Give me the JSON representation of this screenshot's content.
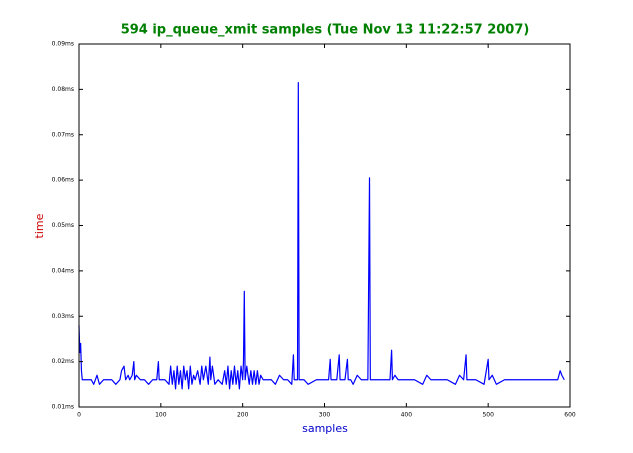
{
  "chart_data": {
    "type": "line",
    "title": "594 ip_queue_xmit samples (Tue Nov 13 11:22:57 2007)",
    "xlabel": "samples",
    "ylabel": "time",
    "xlim": [
      0,
      600
    ],
    "xticks": [
      0,
      100,
      200,
      300,
      400,
      500,
      600
    ],
    "ylim": [
      0.01,
      0.09
    ],
    "yticks": [
      {
        "value": 0.01,
        "label": "0.01ms"
      },
      {
        "value": 0.02,
        "label": "0.02ms"
      },
      {
        "value": 0.03,
        "label": "0.03ms"
      },
      {
        "value": 0.04,
        "label": "0.04ms"
      },
      {
        "value": 0.05,
        "label": "0.05ms"
      },
      {
        "value": 0.06,
        "label": "0.06ms"
      },
      {
        "value": 0.07,
        "label": "0.07ms"
      },
      {
        "value": 0.08,
        "label": "0.08ms"
      },
      {
        "value": 0.09,
        "label": "0.09ms"
      }
    ],
    "x": [
      0,
      1,
      2,
      3,
      4,
      6,
      10,
      15,
      18,
      20,
      22,
      25,
      30,
      35,
      40,
      45,
      50,
      52,
      55,
      57,
      60,
      62,
      65,
      67,
      68,
      70,
      75,
      80,
      85,
      90,
      95,
      97,
      98,
      100,
      105,
      110,
      112,
      114,
      116,
      118,
      120,
      122,
      124,
      126,
      128,
      130,
      132,
      134,
      136,
      138,
      140,
      142,
      145,
      148,
      150,
      152,
      155,
      158,
      160,
      161,
      163,
      166,
      170,
      175,
      178,
      180,
      182,
      184,
      186,
      188,
      190,
      192,
      194,
      196,
      198,
      200,
      201,
      202,
      203,
      205,
      208,
      210,
      212,
      214,
      216,
      218,
      220,
      222,
      225,
      230,
      235,
      240,
      245,
      250,
      255,
      260,
      262,
      263,
      265,
      267,
      268,
      269,
      271,
      275,
      280,
      290,
      300,
      305,
      307,
      308,
      310,
      315,
      318,
      319,
      322,
      325,
      328,
      329,
      332,
      335,
      340,
      345,
      350,
      353,
      355,
      356,
      358,
      365,
      370,
      380,
      382,
      383,
      386,
      390,
      400,
      410,
      420,
      425,
      430,
      440,
      450,
      460,
      465,
      470,
      473,
      474,
      478,
      485,
      495,
      500,
      501,
      505,
      510,
      520,
      530,
      540,
      550,
      560,
      570,
      580,
      585,
      588,
      590,
      593
    ],
    "series": [
      {
        "color": "#0000ff",
        "values": [
          0.028,
          0.022,
          0.024,
          0.018,
          0.016,
          0.016,
          0.016,
          0.016,
          0.015,
          0.016,
          0.017,
          0.015,
          0.016,
          0.016,
          0.016,
          0.015,
          0.016,
          0.018,
          0.019,
          0.016,
          0.017,
          0.016,
          0.017,
          0.02,
          0.016,
          0.017,
          0.016,
          0.016,
          0.015,
          0.016,
          0.016,
          0.02,
          0.016,
          0.016,
          0.016,
          0.015,
          0.019,
          0.015,
          0.018,
          0.014,
          0.019,
          0.015,
          0.018,
          0.014,
          0.019,
          0.016,
          0.018,
          0.014,
          0.019,
          0.015,
          0.017,
          0.016,
          0.018,
          0.015,
          0.019,
          0.016,
          0.019,
          0.015,
          0.021,
          0.016,
          0.019,
          0.015,
          0.016,
          0.015,
          0.018,
          0.015,
          0.019,
          0.014,
          0.018,
          0.015,
          0.019,
          0.015,
          0.018,
          0.014,
          0.019,
          0.016,
          0.02,
          0.0355,
          0.016,
          0.019,
          0.015,
          0.018,
          0.015,
          0.018,
          0.015,
          0.018,
          0.015,
          0.017,
          0.016,
          0.016,
          0.016,
          0.015,
          0.017,
          0.016,
          0.016,
          0.015,
          0.0215,
          0.016,
          0.016,
          0.016,
          0.0815,
          0.016,
          0.016,
          0.016,
          0.015,
          0.016,
          0.016,
          0.016,
          0.0205,
          0.016,
          0.016,
          0.016,
          0.0215,
          0.016,
          0.016,
          0.016,
          0.0205,
          0.016,
          0.016,
          0.015,
          0.017,
          0.016,
          0.016,
          0.016,
          0.0605,
          0.016,
          0.016,
          0.016,
          0.016,
          0.016,
          0.0225,
          0.016,
          0.017,
          0.016,
          0.016,
          0.016,
          0.015,
          0.017,
          0.016,
          0.016,
          0.016,
          0.015,
          0.017,
          0.016,
          0.0215,
          0.016,
          0.016,
          0.016,
          0.015,
          0.0205,
          0.016,
          0.017,
          0.015,
          0.016,
          0.016,
          0.016,
          0.016,
          0.016,
          0.016,
          0.016,
          0.016,
          0.018,
          0.017,
          0.016
        ]
      }
    ]
  }
}
